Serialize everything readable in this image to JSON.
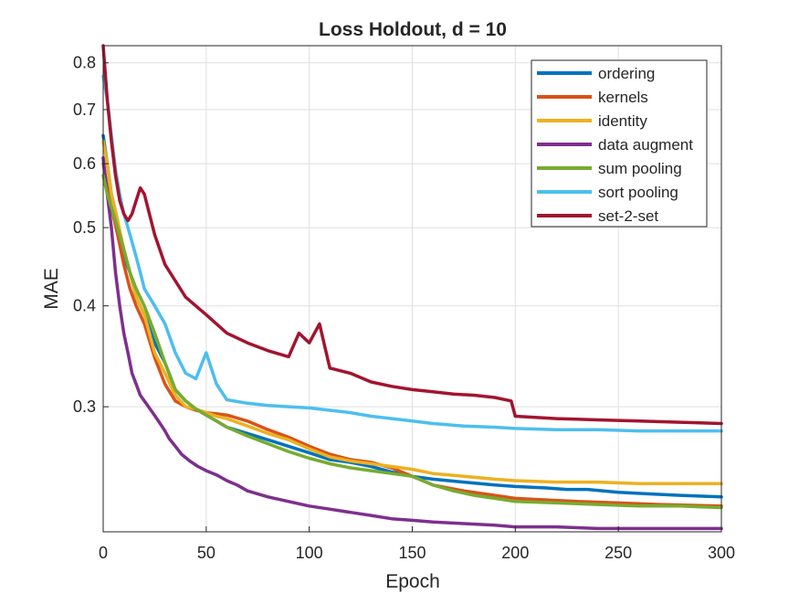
{
  "chart_data": {
    "type": "line",
    "title": "Loss Holdout, d = 10",
    "xlabel": "Epoch",
    "ylabel": "MAE",
    "xlim": [
      0,
      300
    ],
    "ylim": [
      0.21,
      0.84
    ],
    "yscale": "log",
    "grid": true,
    "legend_location": "top-right",
    "xticks": [
      0,
      50,
      100,
      150,
      200,
      250,
      300
    ],
    "xtick_labels": [
      "0",
      "50",
      "100",
      "150",
      "200",
      "250",
      "300"
    ],
    "yticks": [
      0.3,
      0.4,
      0.5,
      0.6,
      0.7,
      0.8
    ],
    "ytick_labels": [
      "0.3",
      "0.4",
      "0.5",
      "0.6",
      "0.7",
      "0.8"
    ],
    "series": [
      {
        "name": "ordering",
        "color": "#0072BD",
        "x": [
          0,
          2,
          4,
          7,
          10,
          13,
          16,
          20,
          25,
          30,
          35,
          40,
          45,
          50,
          55,
          60,
          70,
          80,
          90,
          100,
          110,
          120,
          130,
          140,
          150,
          160,
          175,
          190,
          200,
          215,
          225,
          235,
          250,
          265,
          280,
          300
        ],
        "y": [
          0.65,
          0.6,
          0.55,
          0.51,
          0.46,
          0.44,
          0.41,
          0.39,
          0.36,
          0.34,
          0.315,
          0.305,
          0.298,
          0.293,
          0.288,
          0.283,
          0.278,
          0.273,
          0.268,
          0.263,
          0.258,
          0.256,
          0.253,
          0.249,
          0.246,
          0.244,
          0.242,
          0.24,
          0.239,
          0.238,
          0.237,
          0.237,
          0.235,
          0.234,
          0.233,
          0.232
        ]
      },
      {
        "name": "kernels",
        "color": "#D95319",
        "x": [
          0,
          2,
          4,
          7,
          10,
          13,
          16,
          20,
          25,
          30,
          35,
          40,
          45,
          50,
          55,
          60,
          70,
          80,
          90,
          100,
          110,
          120,
          130,
          140,
          150,
          160,
          175,
          190,
          200,
          215,
          230,
          250,
          270,
          300
        ],
        "y": [
          0.6,
          0.56,
          0.53,
          0.49,
          0.45,
          0.42,
          0.4,
          0.38,
          0.345,
          0.32,
          0.305,
          0.3,
          0.297,
          0.295,
          0.294,
          0.293,
          0.288,
          0.281,
          0.275,
          0.268,
          0.262,
          0.258,
          0.256,
          0.252,
          0.246,
          0.24,
          0.236,
          0.233,
          0.231,
          0.23,
          0.229,
          0.228,
          0.227,
          0.226
        ]
      },
      {
        "name": "identity",
        "color": "#EDB120",
        "x": [
          0,
          2,
          4,
          7,
          10,
          13,
          16,
          20,
          25,
          30,
          35,
          40,
          45,
          50,
          55,
          60,
          70,
          80,
          90,
          100,
          110,
          120,
          130,
          140,
          150,
          160,
          175,
          190,
          200,
          220,
          240,
          260,
          280,
          300
        ],
        "y": [
          0.64,
          0.6,
          0.55,
          0.51,
          0.47,
          0.44,
          0.41,
          0.39,
          0.35,
          0.33,
          0.31,
          0.3,
          0.298,
          0.295,
          0.292,
          0.29,
          0.284,
          0.278,
          0.273,
          0.266,
          0.26,
          0.257,
          0.255,
          0.253,
          0.251,
          0.248,
          0.246,
          0.244,
          0.243,
          0.242,
          0.242,
          0.241,
          0.241,
          0.241
        ]
      },
      {
        "name": "data augment",
        "color": "#7E2F8E",
        "x": [
          0,
          2,
          4,
          6,
          8,
          10,
          12,
          14,
          16,
          18,
          20,
          22,
          24,
          26,
          28,
          30,
          32,
          35,
          38,
          42,
          46,
          50,
          55,
          60,
          65,
          70,
          80,
          90,
          100,
          110,
          120,
          130,
          140,
          150,
          160,
          175,
          190,
          200,
          220,
          240,
          260,
          280,
          300
        ],
        "y": [
          0.61,
          0.55,
          0.5,
          0.44,
          0.4,
          0.37,
          0.35,
          0.33,
          0.32,
          0.31,
          0.305,
          0.3,
          0.295,
          0.29,
          0.285,
          0.28,
          0.274,
          0.268,
          0.262,
          0.257,
          0.253,
          0.25,
          0.247,
          0.243,
          0.24,
          0.236,
          0.232,
          0.229,
          0.226,
          0.224,
          0.222,
          0.22,
          0.218,
          0.217,
          0.216,
          0.215,
          0.214,
          0.213,
          0.213,
          0.212,
          0.212,
          0.212,
          0.212
        ]
      },
      {
        "name": "sum pooling",
        "color": "#77AC30",
        "x": [
          0,
          2,
          4,
          7,
          10,
          13,
          16,
          20,
          25,
          30,
          35,
          40,
          45,
          50,
          55,
          60,
          70,
          80,
          90,
          100,
          110,
          120,
          130,
          140,
          145,
          150,
          160,
          170,
          180,
          190,
          200,
          220,
          240,
          260,
          280,
          300
        ],
        "y": [
          0.58,
          0.55,
          0.53,
          0.5,
          0.47,
          0.44,
          0.42,
          0.4,
          0.37,
          0.34,
          0.315,
          0.305,
          0.298,
          0.293,
          0.288,
          0.283,
          0.276,
          0.27,
          0.264,
          0.259,
          0.255,
          0.252,
          0.25,
          0.248,
          0.247,
          0.246,
          0.24,
          0.236,
          0.233,
          0.231,
          0.229,
          0.228,
          0.227,
          0.226,
          0.226,
          0.225
        ]
      },
      {
        "name": "sort pooling",
        "color": "#4DBEEE",
        "x": [
          0,
          2,
          4,
          6,
          8,
          10,
          12,
          14,
          16,
          18,
          20,
          25,
          30,
          35,
          40,
          45,
          50,
          55,
          60,
          70,
          80,
          90,
          100,
          110,
          120,
          130,
          140,
          150,
          160,
          175,
          190,
          200,
          220,
          240,
          260,
          280,
          300
        ],
        "y": [
          0.77,
          0.72,
          0.65,
          0.59,
          0.55,
          0.52,
          0.5,
          0.48,
          0.46,
          0.44,
          0.42,
          0.4,
          0.38,
          0.35,
          0.33,
          0.325,
          0.35,
          0.32,
          0.306,
          0.303,
          0.301,
          0.3,
          0.299,
          0.297,
          0.295,
          0.292,
          0.29,
          0.288,
          0.286,
          0.284,
          0.283,
          0.282,
          0.281,
          0.281,
          0.28,
          0.28,
          0.28
        ]
      },
      {
        "name": "set-2-set",
        "color": "#A2142F",
        "x": [
          0,
          2,
          4,
          6,
          8,
          10,
          12,
          14,
          16,
          18,
          20,
          25,
          30,
          40,
          50,
          60,
          70,
          80,
          90,
          95,
          100,
          105,
          110,
          120,
          130,
          140,
          150,
          160,
          170,
          180,
          190,
          198,
          200,
          220,
          240,
          260,
          280,
          300
        ],
        "y": [
          0.84,
          0.72,
          0.64,
          0.58,
          0.54,
          0.52,
          0.51,
          0.52,
          0.54,
          0.56,
          0.55,
          0.49,
          0.45,
          0.41,
          0.39,
          0.37,
          0.36,
          0.352,
          0.346,
          0.37,
          0.36,
          0.38,
          0.335,
          0.33,
          0.322,
          0.318,
          0.315,
          0.313,
          0.311,
          0.31,
          0.308,
          0.305,
          0.292,
          0.29,
          0.289,
          0.288,
          0.287,
          0.286
        ]
      }
    ]
  }
}
